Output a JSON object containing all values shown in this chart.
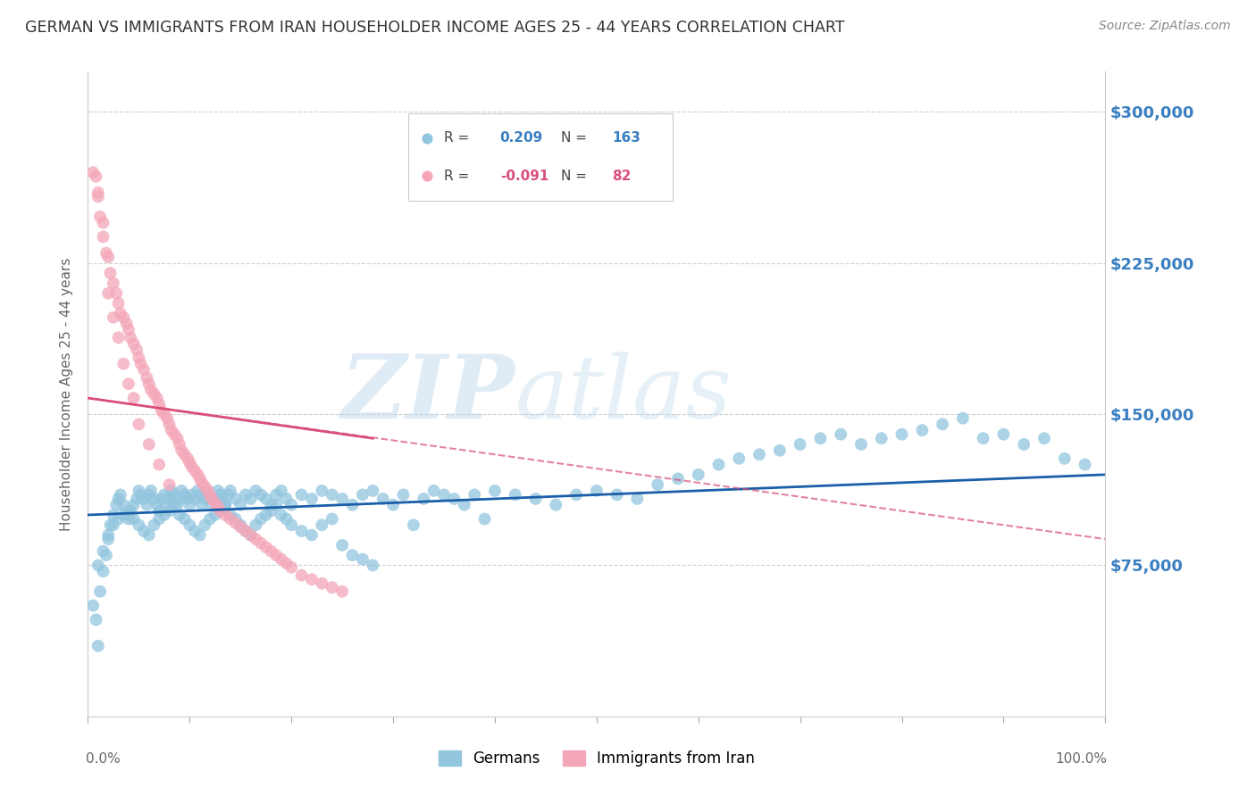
{
  "title": "GERMAN VS IMMIGRANTS FROM IRAN HOUSEHOLDER INCOME AGES 25 - 44 YEARS CORRELATION CHART",
  "source": "Source: ZipAtlas.com",
  "ylabel": "Householder Income Ages 25 - 44 years",
  "watermark": "ZIPatlas",
  "ylim": [
    0,
    320000
  ],
  "xlim": [
    0.0,
    1.0
  ],
  "legend_blue_r_val": "0.209",
  "legend_blue_n_val": "163",
  "legend_pink_r_val": "-0.091",
  "legend_pink_n_val": "82",
  "legend_label_blue": "Germans",
  "legend_label_pink": "Immigrants from Iran",
  "blue_color": "#92c5de",
  "pink_color": "#f4a6b8",
  "blue_line_color": "#1a5fa8",
  "pink_line_color": "#d94f7a",
  "title_color": "#333333",
  "axis_label_color": "#666666",
  "tick_label_color": "#3a7fc1",
  "grid_color": "#d0d0d0",
  "background_color": "#ffffff",
  "blue_scatter_x": [
    0.005,
    0.008,
    0.01,
    0.012,
    0.015,
    0.018,
    0.02,
    0.022,
    0.025,
    0.028,
    0.03,
    0.032,
    0.035,
    0.038,
    0.04,
    0.042,
    0.045,
    0.048,
    0.05,
    0.052,
    0.055,
    0.058,
    0.06,
    0.062,
    0.065,
    0.068,
    0.07,
    0.072,
    0.075,
    0.078,
    0.08,
    0.082,
    0.085,
    0.088,
    0.09,
    0.092,
    0.095,
    0.098,
    0.1,
    0.102,
    0.105,
    0.108,
    0.11,
    0.112,
    0.115,
    0.118,
    0.12,
    0.122,
    0.125,
    0.128,
    0.13,
    0.132,
    0.135,
    0.138,
    0.14,
    0.145,
    0.15,
    0.155,
    0.16,
    0.165,
    0.17,
    0.175,
    0.18,
    0.185,
    0.19,
    0.195,
    0.2,
    0.21,
    0.22,
    0.23,
    0.24,
    0.25,
    0.26,
    0.27,
    0.28,
    0.29,
    0.3,
    0.31,
    0.32,
    0.33,
    0.34,
    0.35,
    0.36,
    0.37,
    0.38,
    0.39,
    0.4,
    0.42,
    0.44,
    0.46,
    0.48,
    0.5,
    0.52,
    0.54,
    0.56,
    0.58,
    0.6,
    0.62,
    0.64,
    0.66,
    0.68,
    0.7,
    0.72,
    0.74,
    0.76,
    0.78,
    0.8,
    0.82,
    0.84,
    0.86,
    0.88,
    0.9,
    0.92,
    0.94,
    0.96,
    0.98,
    0.01,
    0.015,
    0.02,
    0.025,
    0.03,
    0.035,
    0.04,
    0.045,
    0.05,
    0.055,
    0.06,
    0.065,
    0.07,
    0.075,
    0.08,
    0.085,
    0.09,
    0.095,
    0.1,
    0.105,
    0.11,
    0.115,
    0.12,
    0.125,
    0.13,
    0.135,
    0.14,
    0.145,
    0.15,
    0.155,
    0.16,
    0.165,
    0.17,
    0.175,
    0.18,
    0.185,
    0.19,
    0.195,
    0.2,
    0.21,
    0.22,
    0.23,
    0.24,
    0.25,
    0.26,
    0.27,
    0.28
  ],
  "blue_scatter_y": [
    55000,
    48000,
    35000,
    62000,
    72000,
    80000,
    88000,
    95000,
    100000,
    105000,
    108000,
    110000,
    105000,
    100000,
    98000,
    102000,
    105000,
    108000,
    112000,
    110000,
    108000,
    105000,
    110000,
    112000,
    108000,
    105000,
    102000,
    108000,
    110000,
    105000,
    108000,
    112000,
    110000,
    105000,
    108000,
    112000,
    110000,
    108000,
    105000,
    110000,
    108000,
    112000,
    110000,
    105000,
    108000,
    112000,
    110000,
    105000,
    108000,
    112000,
    110000,
    108000,
    105000,
    110000,
    112000,
    108000,
    105000,
    110000,
    108000,
    112000,
    110000,
    108000,
    105000,
    110000,
    112000,
    108000,
    105000,
    110000,
    108000,
    112000,
    110000,
    108000,
    105000,
    110000,
    112000,
    108000,
    105000,
    110000,
    95000,
    108000,
    112000,
    110000,
    108000,
    105000,
    110000,
    98000,
    112000,
    110000,
    108000,
    105000,
    110000,
    112000,
    110000,
    108000,
    115000,
    118000,
    120000,
    125000,
    128000,
    130000,
    132000,
    135000,
    138000,
    140000,
    135000,
    138000,
    140000,
    142000,
    145000,
    148000,
    138000,
    140000,
    135000,
    138000,
    128000,
    125000,
    75000,
    82000,
    90000,
    95000,
    98000,
    100000,
    102000,
    98000,
    95000,
    92000,
    90000,
    95000,
    98000,
    100000,
    102000,
    105000,
    100000,
    98000,
    95000,
    92000,
    90000,
    95000,
    98000,
    100000,
    102000,
    105000,
    100000,
    98000,
    95000,
    92000,
    90000,
    95000,
    98000,
    100000,
    102000,
    105000,
    100000,
    98000,
    95000,
    92000,
    90000,
    95000,
    98000,
    85000,
    80000,
    78000,
    75000
  ],
  "pink_scatter_x": [
    0.005,
    0.008,
    0.01,
    0.012,
    0.015,
    0.018,
    0.02,
    0.022,
    0.025,
    0.028,
    0.03,
    0.032,
    0.035,
    0.038,
    0.04,
    0.042,
    0.045,
    0.048,
    0.05,
    0.052,
    0.055,
    0.058,
    0.06,
    0.062,
    0.065,
    0.068,
    0.07,
    0.072,
    0.075,
    0.078,
    0.08,
    0.082,
    0.085,
    0.088,
    0.09,
    0.092,
    0.095,
    0.098,
    0.1,
    0.102,
    0.105,
    0.108,
    0.11,
    0.112,
    0.115,
    0.118,
    0.12,
    0.122,
    0.125,
    0.128,
    0.13,
    0.135,
    0.14,
    0.145,
    0.15,
    0.155,
    0.16,
    0.165,
    0.17,
    0.175,
    0.18,
    0.185,
    0.19,
    0.195,
    0.2,
    0.21,
    0.22,
    0.23,
    0.24,
    0.25,
    0.01,
    0.015,
    0.02,
    0.025,
    0.03,
    0.035,
    0.04,
    0.045,
    0.05,
    0.06,
    0.07,
    0.08
  ],
  "pink_scatter_y": [
    270000,
    268000,
    260000,
    248000,
    238000,
    230000,
    228000,
    220000,
    215000,
    210000,
    205000,
    200000,
    198000,
    195000,
    192000,
    188000,
    185000,
    182000,
    178000,
    175000,
    172000,
    168000,
    165000,
    162000,
    160000,
    158000,
    155000,
    152000,
    150000,
    148000,
    145000,
    142000,
    140000,
    138000,
    135000,
    132000,
    130000,
    128000,
    126000,
    124000,
    122000,
    120000,
    118000,
    116000,
    114000,
    112000,
    110000,
    108000,
    106000,
    104000,
    102000,
    100000,
    98000,
    96000,
    94000,
    92000,
    90000,
    88000,
    86000,
    84000,
    82000,
    80000,
    78000,
    76000,
    74000,
    70000,
    68000,
    66000,
    64000,
    62000,
    258000,
    245000,
    210000,
    198000,
    188000,
    175000,
    165000,
    158000,
    145000,
    135000,
    125000,
    115000
  ]
}
